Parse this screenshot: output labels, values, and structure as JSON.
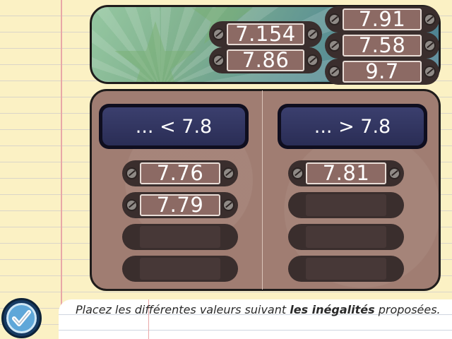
{
  "pool": {
    "tiles": [
      "7.154",
      "7.86",
      "7.91",
      "7.58",
      "9.7"
    ]
  },
  "columns": [
    {
      "header": "... < 7.8",
      "placed": [
        "7.76",
        "7.79"
      ]
    },
    {
      "header": "... > 7.8",
      "placed": [
        "7.81"
      ]
    }
  ],
  "instruction": {
    "text_before": "Placez les différentes valeurs suivant ",
    "text_bold": "les inégalités",
    "text_after": " proposées."
  },
  "controls": {
    "validate_icon": "checkmark-icon"
  },
  "colors": {
    "plate": "#8c6a64",
    "board": "#a07d72",
    "header": "#2a2d55",
    "validate": "#5fa7d9"
  }
}
